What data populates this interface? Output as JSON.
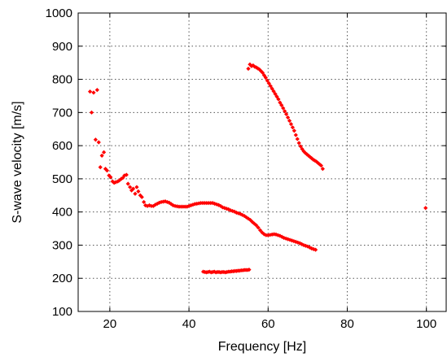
{
  "chart_data": {
    "type": "scatter",
    "xlabel": "Frequency [Hz]",
    "ylabel": "S-wave velocity [m/s]",
    "xlim": [
      12,
      105
    ],
    "ylim": [
      100,
      1000
    ],
    "xticks": [
      20,
      40,
      60,
      80,
      100
    ],
    "yticks": [
      100,
      200,
      300,
      400,
      500,
      600,
      700,
      800,
      900,
      1000
    ],
    "grid": true,
    "marker_color": "#ff0000",
    "marker": "diamond",
    "series": [
      {
        "points": [
          [
            15,
            763
          ],
          [
            15.4,
            700
          ],
          [
            15.9,
            760
          ],
          [
            16.4,
            618
          ],
          [
            16.8,
            768
          ],
          [
            17.2,
            610
          ],
          [
            17.6,
            535
          ],
          [
            18.0,
            570
          ],
          [
            18.5,
            580
          ],
          [
            18.9,
            530
          ],
          [
            19.3,
            525
          ],
          [
            19.8,
            510
          ],
          [
            20.2,
            505
          ],
          [
            20.7,
            492
          ],
          [
            21.1,
            488
          ],
          [
            21.5,
            490
          ],
          [
            22.0,
            492
          ],
          [
            22.4,
            495
          ],
          [
            22.9,
            500
          ],
          [
            23.3,
            503
          ],
          [
            23.7,
            510
          ],
          [
            24.2,
            512
          ],
          [
            24.6,
            485
          ],
          [
            25.1,
            475
          ],
          [
            25.5,
            465
          ],
          [
            25.9,
            470
          ],
          [
            26.4,
            455
          ],
          [
            26.8,
            475
          ],
          [
            27.2,
            462
          ],
          [
            27.7,
            450
          ],
          [
            28.1,
            445
          ],
          [
            28.6,
            430
          ],
          [
            29.0,
            420
          ],
          [
            29.5,
            418
          ],
          [
            30.0,
            420
          ],
          [
            30.5,
            418
          ],
          [
            31.0,
            418
          ],
          [
            31.5,
            422
          ],
          [
            32.0,
            425
          ],
          [
            32.5,
            428
          ],
          [
            33.0,
            430
          ],
          [
            33.5,
            431
          ],
          [
            34.0,
            432
          ],
          [
            34.5,
            430
          ],
          [
            35.0,
            428
          ],
          [
            35.5,
            424
          ],
          [
            36.0,
            420
          ],
          [
            36.5,
            418
          ],
          [
            37.0,
            417
          ],
          [
            37.5,
            416
          ],
          [
            38.0,
            416
          ],
          [
            38.5,
            416
          ],
          [
            39.0,
            416
          ],
          [
            39.5,
            416
          ],
          [
            40.0,
            418
          ],
          [
            40.5,
            420
          ],
          [
            41.0,
            422
          ],
          [
            41.5,
            424
          ],
          [
            42.0,
            425
          ],
          [
            42.5,
            426
          ],
          [
            43.0,
            427
          ],
          [
            43.5,
            427
          ],
          [
            44.0,
            427
          ],
          [
            44.5,
            427
          ],
          [
            45.0,
            427
          ],
          [
            45.5,
            427
          ],
          [
            46.0,
            427
          ],
          [
            46.5,
            425
          ],
          [
            47.0,
            423
          ],
          [
            47.5,
            421
          ],
          [
            48.0,
            418
          ],
          [
            48.5,
            414
          ],
          [
            49.0,
            412
          ],
          [
            49.5,
            410
          ],
          [
            50.0,
            408
          ],
          [
            50.5,
            405
          ],
          [
            51.0,
            403
          ],
          [
            51.5,
            401
          ],
          [
            52.0,
            398
          ],
          [
            52.5,
            396
          ],
          [
            53.0,
            394
          ],
          [
            53.5,
            391
          ],
          [
            54.0,
            388
          ],
          [
            54.5,
            384
          ],
          [
            55.0,
            380
          ],
          [
            55.5,
            376
          ],
          [
            56.0,
            370
          ],
          [
            56.5,
            365
          ],
          [
            57.0,
            360
          ],
          [
            57.5,
            353
          ],
          [
            58.0,
            345
          ],
          [
            58.5,
            338
          ],
          [
            59.0,
            333
          ],
          [
            59.5,
            330
          ],
          [
            60.0,
            330
          ],
          [
            60.5,
            331
          ],
          [
            61.0,
            332
          ],
          [
            61.5,
            333
          ],
          [
            62.0,
            332
          ],
          [
            62.5,
            330
          ],
          [
            63.0,
            328
          ],
          [
            63.5,
            325
          ],
          [
            64.0,
            322
          ],
          [
            64.5,
            320
          ],
          [
            65.0,
            318
          ],
          [
            65.5,
            316
          ],
          [
            66.0,
            314
          ],
          [
            66.5,
            312
          ],
          [
            67.0,
            310
          ],
          [
            67.5,
            308
          ],
          [
            68.0,
            306
          ],
          [
            68.5,
            303
          ],
          [
            69.0,
            300
          ],
          [
            69.5,
            298
          ],
          [
            70.0,
            296
          ],
          [
            70.5,
            293
          ],
          [
            71.0,
            290
          ],
          [
            71.5,
            288
          ],
          [
            72.0,
            286
          ],
          [
            55.0,
            832
          ],
          [
            55.4,
            845
          ],
          [
            55.8,
            840
          ],
          [
            56.2,
            842
          ],
          [
            56.6,
            838
          ],
          [
            57.0,
            836
          ],
          [
            57.4,
            833
          ],
          [
            57.8,
            830
          ],
          [
            58.2,
            825
          ],
          [
            58.6,
            820
          ],
          [
            59.0,
            812
          ],
          [
            59.4,
            805
          ],
          [
            59.8,
            796
          ],
          [
            60.2,
            788
          ],
          [
            60.6,
            780
          ],
          [
            61.0,
            772
          ],
          [
            61.4,
            764
          ],
          [
            61.8,
            756
          ],
          [
            62.2,
            748
          ],
          [
            62.6,
            740
          ],
          [
            63.0,
            730
          ],
          [
            63.4,
            722
          ],
          [
            63.8,
            713
          ],
          [
            64.2,
            704
          ],
          [
            64.6,
            695
          ],
          [
            65.0,
            685
          ],
          [
            65.4,
            675
          ],
          [
            65.8,
            665
          ],
          [
            66.2,
            655
          ],
          [
            66.6,
            645
          ],
          [
            67.0,
            632
          ],
          [
            67.4,
            620
          ],
          [
            67.8,
            608
          ],
          [
            68.2,
            598
          ],
          [
            68.6,
            590
          ],
          [
            69.0,
            583
          ],
          [
            69.4,
            578
          ],
          [
            69.8,
            574
          ],
          [
            70.2,
            570
          ],
          [
            70.6,
            566
          ],
          [
            71.0,
            562
          ],
          [
            71.4,
            558
          ],
          [
            71.8,
            555
          ],
          [
            72.2,
            552
          ],
          [
            72.6,
            548
          ],
          [
            73.0,
            544
          ],
          [
            73.4,
            540
          ],
          [
            73.8,
            530
          ],
          [
            43.6,
            220
          ],
          [
            44.0,
            219
          ],
          [
            44.4,
            218
          ],
          [
            44.8,
            219
          ],
          [
            45.2,
            220
          ],
          [
            45.6,
            218
          ],
          [
            46.0,
            219
          ],
          [
            46.4,
            220
          ],
          [
            46.8,
            218
          ],
          [
            47.2,
            219
          ],
          [
            47.6,
            219
          ],
          [
            48.0,
            218
          ],
          [
            48.4,
            219
          ],
          [
            48.8,
            219
          ],
          [
            49.2,
            218
          ],
          [
            49.6,
            219
          ],
          [
            50.0,
            220
          ],
          [
            50.4,
            220
          ],
          [
            50.8,
            221
          ],
          [
            51.2,
            221
          ],
          [
            51.6,
            222
          ],
          [
            52.0,
            222
          ],
          [
            52.4,
            223
          ],
          [
            52.8,
            223
          ],
          [
            53.2,
            224
          ],
          [
            53.6,
            224
          ],
          [
            54.0,
            225
          ],
          [
            54.4,
            225
          ],
          [
            54.8,
            225
          ],
          [
            55.2,
            226
          ],
          [
            99.8,
            412
          ]
        ]
      }
    ]
  }
}
